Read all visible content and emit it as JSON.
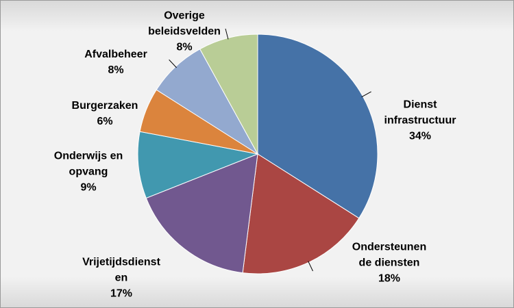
{
  "chart_data": {
    "type": "pie",
    "categories": [
      "Dienst infrastructuur",
      "Ondersteunende diensten",
      "Vrijetijdsdienst en",
      "Onderwijs en opvang",
      "Burgerzaken",
      "Afvalbeheer",
      "Overige beleidsvelden"
    ],
    "values": [
      34,
      18,
      17,
      9,
      6,
      8,
      8
    ],
    "value_labels": [
      "34%",
      "18%",
      "17%",
      "9%",
      "6%",
      "8%",
      "8%"
    ],
    "colors": [
      "#4572a7",
      "#aa4643",
      "#71588f",
      "#4198af",
      "#db843d",
      "#93a9cf",
      "#b9cd96"
    ]
  }
}
